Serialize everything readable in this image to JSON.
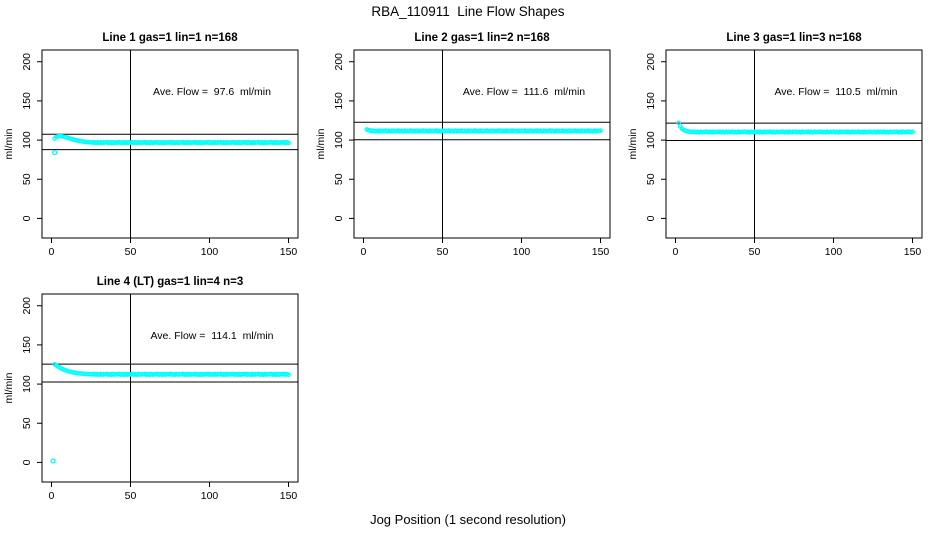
{
  "page": {
    "title": "RBA_110911  Line Flow Shapes",
    "xlabel": "Jog Position (1 second resolution)"
  },
  "colors": {
    "point": "#00ffff",
    "axis": "#000000",
    "background": "#ffffff"
  },
  "chart_data": {
    "type": "scatter",
    "title": "RBA_110911  Line Flow Shapes",
    "xlabel": "Jog Position (1 second resolution)",
    "ylabel": "ml/min",
    "layout": {
      "rows": 2,
      "cols": 3,
      "grid_on": false,
      "legend": "none"
    },
    "axes": {
      "x_ticks": [
        0,
        50,
        100,
        150
      ],
      "y_ticks": [
        0,
        50,
        100,
        150,
        200
      ],
      "xlim": [
        -6,
        156
      ],
      "ylim": [
        -25,
        215
      ],
      "vline_x": 50
    },
    "plots": [
      {
        "title": "Line 1 gas=1 lin=1 n=168",
        "annotation": "Ave. Flow =  97.6  ml/min",
        "ave_flow": 97.6,
        "hlines": [
          107.4,
          87.8
        ],
        "series": {
          "x_start": 2,
          "x_step": 1,
          "head": [
            102.0,
            104.0,
            104.8,
            105.0,
            105.0,
            104.6,
            104.2,
            103.6,
            103.0,
            102.4,
            101.8,
            101.2,
            100.6,
            100.1,
            99.6,
            99.2,
            98.8,
            98.4,
            98.1,
            97.8,
            97.6,
            97.4,
            97.2,
            97.1
          ],
          "tail_base": 96.8,
          "tail_noise": [
            0,
            0.5,
            -0.4,
            0.3,
            -0.5,
            0.4,
            -0.3,
            0.2
          ],
          "tail_count": 125
        },
        "outliers": [
          [
            2,
            84
          ]
        ]
      },
      {
        "title": "Line 2 gas=1 lin=2 n=168",
        "annotation": "Ave. Flow =  111.6  ml/min",
        "ave_flow": 111.6,
        "hlines": [
          122.8,
          100.4
        ],
        "series": {
          "x_start": 2,
          "x_step": 1,
          "head": [
            113.6,
            112.8,
            112.3
          ],
          "tail_base": 111.6,
          "tail_noise": [
            0,
            0.5,
            -0.4,
            0.3,
            -0.5,
            0.4,
            -0.3,
            0.2
          ],
          "tail_count": 146
        },
        "outliers": []
      },
      {
        "title": "Line 3 gas=1 lin=3 n=168",
        "annotation": "Ave. Flow =  110.5  ml/min",
        "ave_flow": 110.5,
        "hlines": [
          121.6,
          99.5
        ],
        "series": {
          "x_start": 2,
          "x_step": 1,
          "head": [
            122.0,
            117.5,
            114.8,
            113.2,
            112.2,
            111.5,
            111.0,
            110.7,
            110.5
          ],
          "tail_base": 110.3,
          "tail_noise": [
            0,
            0.5,
            -0.4,
            0.3,
            -0.5,
            0.4,
            -0.3,
            0.2
          ],
          "tail_count": 140
        },
        "outliers": []
      },
      {
        "title": "Line 4 (LT) gas=1 lin=4 n=3",
        "annotation": "Ave. Flow =  114.1  ml/min",
        "ave_flow": 114.1,
        "hlines": [
          125.5,
          102.7
        ],
        "series": {
          "x_start": 2,
          "x_step": 1,
          "head": [
            125.2,
            123.8,
            122.5,
            121.3,
            120.2,
            119.2,
            118.3,
            117.5,
            116.8,
            116.2,
            115.7,
            115.2,
            114.8,
            114.4,
            114.1,
            113.8,
            113.6,
            113.4,
            113.2,
            113.0,
            112.9,
            112.8,
            112.7,
            112.6
          ],
          "tail_base": 112.4,
          "tail_noise": [
            0,
            0.5,
            -0.4,
            0.3,
            -0.5,
            0.4,
            -0.3,
            0.2
          ],
          "tail_count": 125
        },
        "outliers": [
          [
            1,
            2
          ]
        ]
      }
    ]
  }
}
